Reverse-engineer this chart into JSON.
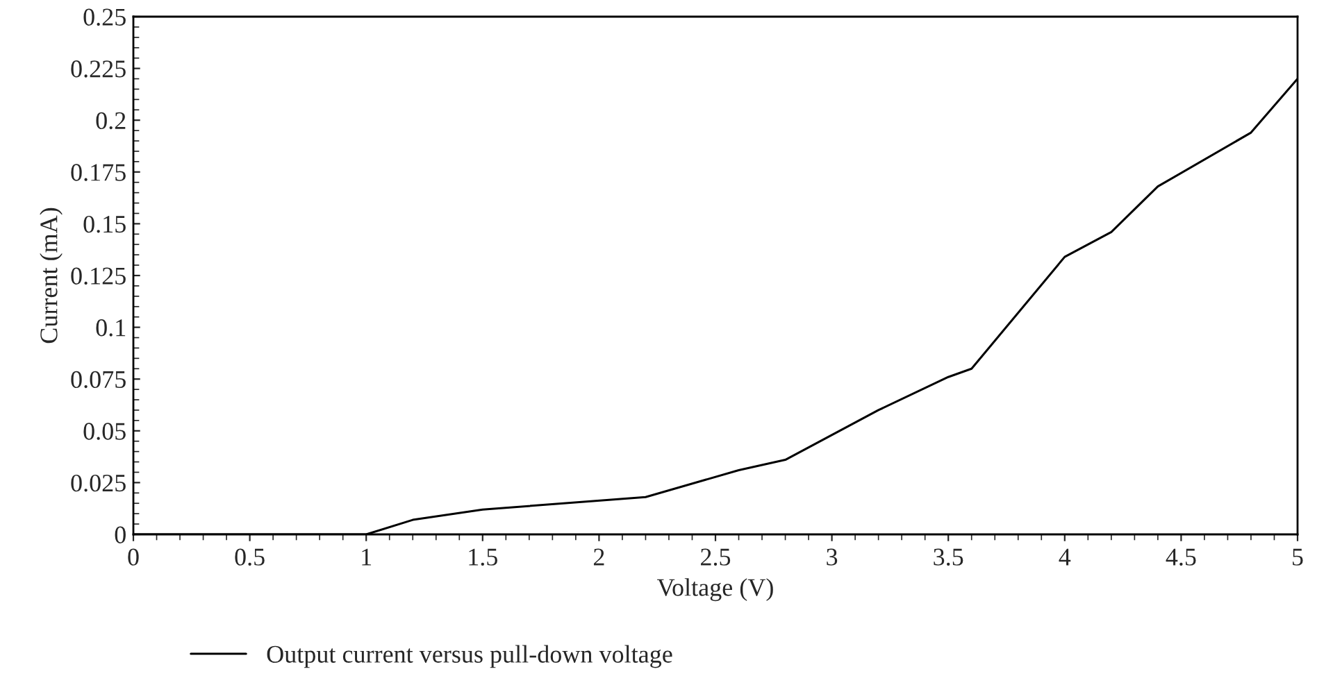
{
  "chart_data": {
    "type": "line",
    "xlabel": "Voltage (V)",
    "ylabel": "Current (mA)",
    "x": [
      0,
      1,
      1.2,
      1.5,
      2.2,
      2.6,
      2.8,
      3.2,
      3.5,
      3.6,
      4,
      4.2,
      4.4,
      4.8,
      5
    ],
    "series": [
      {
        "name": "Output current versus pull-down voltage",
        "color": "#000000",
        "values": [
          0,
          0,
          0.007,
          0.012,
          0.018,
          0.031,
          0.036,
          0.06,
          0.076,
          0.08,
          0.134,
          0.146,
          0.168,
          0.194,
          0.22
        ]
      }
    ],
    "xlim": [
      0,
      5
    ],
    "ylim": [
      0,
      0.25
    ],
    "xticks": [
      0,
      0.5,
      1,
      1.5,
      2,
      2.5,
      3,
      3.5,
      4,
      4.5,
      5
    ],
    "yticks": [
      0,
      0.025,
      0.05,
      0.075,
      0.1,
      0.125,
      0.15,
      0.175,
      0.2,
      0.225,
      0.25
    ],
    "grid": false,
    "legend": "bottom",
    "marker": "none",
    "line_style": "solid"
  }
}
